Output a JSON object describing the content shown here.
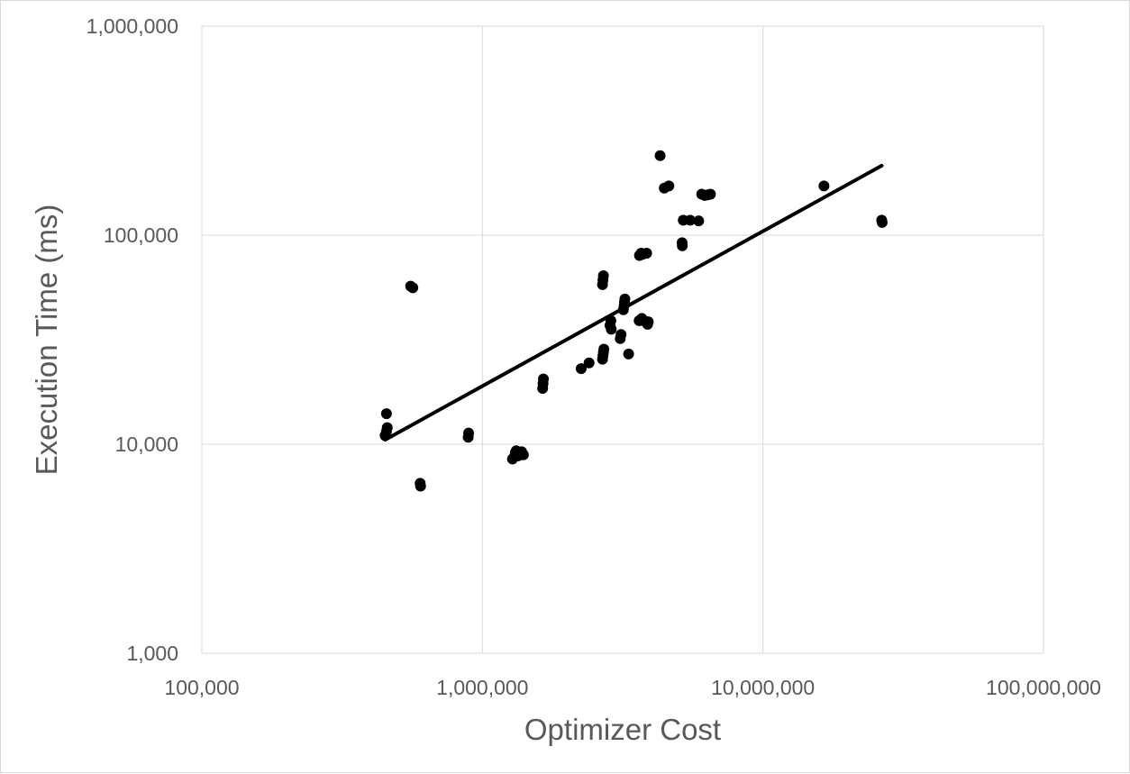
{
  "chart_data": {
    "type": "scatter",
    "title": "",
    "xlabel": "Optimizer Cost",
    "ylabel": "Execution Time (ms)",
    "x_scale": "log",
    "y_scale": "log",
    "xlim": [
      100000,
      100000000
    ],
    "ylim": [
      1000,
      1000000
    ],
    "x_ticks": [
      100000,
      1000000,
      10000000,
      100000000
    ],
    "x_tick_labels": [
      "100,000",
      "1,000,000",
      "10,000,000",
      "100,000,000"
    ],
    "y_ticks": [
      1000,
      10000,
      100000,
      1000000
    ],
    "y_tick_labels": [
      "1,000",
      "10,000",
      "100,000",
      "1,000,000"
    ],
    "grid": true,
    "legend": "none",
    "colors": {
      "points": "#000000",
      "trendline": "#000000",
      "grid": "#d9d9d9",
      "text": "#595959"
    },
    "series": [
      {
        "points": [
          [
            450000,
            11000
          ],
          [
            455000,
            11500
          ],
          [
            458000,
            12000
          ],
          [
            455000,
            14000
          ],
          [
            555000,
            57000
          ],
          [
            565000,
            56000
          ],
          [
            600000,
            6500
          ],
          [
            602000,
            6300
          ],
          [
            890000,
            10800
          ],
          [
            893000,
            11300
          ],
          [
            1280000,
            8500
          ],
          [
            1300000,
            8700
          ],
          [
            1310000,
            9100
          ],
          [
            1320000,
            9300
          ],
          [
            1340000,
            8800
          ],
          [
            1360000,
            9000
          ],
          [
            1380000,
            9200
          ],
          [
            1400000,
            8900
          ],
          [
            1640000,
            18500
          ],
          [
            1645000,
            19500
          ],
          [
            1650000,
            20500
          ],
          [
            2250000,
            23000
          ],
          [
            2400000,
            24500
          ],
          [
            2680000,
            25500
          ],
          [
            2690000,
            26500
          ],
          [
            2700000,
            27500
          ],
          [
            2710000,
            28500
          ],
          [
            2680000,
            58000
          ],
          [
            2690000,
            61000
          ],
          [
            2700000,
            64000
          ],
          [
            2850000,
            37000
          ],
          [
            2870000,
            39000
          ],
          [
            2880000,
            35500
          ],
          [
            3100000,
            32000
          ],
          [
            3120000,
            33500
          ],
          [
            3180000,
            44000
          ],
          [
            3200000,
            46000
          ],
          [
            3210000,
            48000
          ],
          [
            3220000,
            49500
          ],
          [
            3320000,
            27000
          ],
          [
            3620000,
            39000
          ],
          [
            3700000,
            40000
          ],
          [
            3750000,
            39000
          ],
          [
            3630000,
            80000
          ],
          [
            3680000,
            82000
          ],
          [
            3720000,
            81000
          ],
          [
            3850000,
            82000
          ],
          [
            3880000,
            37500
          ],
          [
            3900000,
            38500
          ],
          [
            4300000,
            240000
          ],
          [
            4450000,
            168000
          ],
          [
            4620000,
            172000
          ],
          [
            5150000,
            92000
          ],
          [
            5160000,
            89000
          ],
          [
            5200000,
            118000
          ],
          [
            5500000,
            118000
          ],
          [
            5900000,
            117000
          ],
          [
            6050000,
            157000
          ],
          [
            6200000,
            155000
          ],
          [
            6350000,
            156000
          ],
          [
            6500000,
            157000
          ],
          [
            16500000,
            172000
          ],
          [
            26500000,
            118000
          ],
          [
            26600000,
            115000
          ]
        ]
      }
    ],
    "trendline": {
      "type": "power",
      "x_start": 450000,
      "y_start": 10500,
      "x_end": 26500000,
      "y_end": 215000
    }
  }
}
